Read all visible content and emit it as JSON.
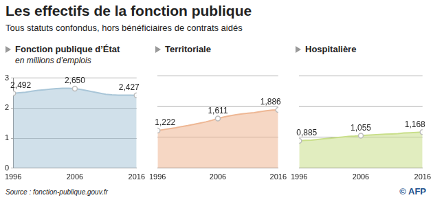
{
  "title": "Les effectifs de la fonction publique",
  "subtitle": "Tous statuts confondus, hors bénéficiaires de contrats aidés",
  "source": "Source : fonction-publique.gouv.fr",
  "credit": "© AFP",
  "chart_data": [
    {
      "type": "area",
      "title": "Fonction publique d’État",
      "ylabel": "en millions d’emplois",
      "categories": [
        "1996",
        null,
        null,
        null,
        null,
        null,
        null,
        null,
        null,
        null,
        "2006",
        null,
        null,
        null,
        null,
        null,
        null,
        null,
        null,
        null,
        "2016"
      ],
      "values": [
        2.492,
        2.51,
        2.53,
        2.56,
        2.59,
        2.61,
        2.63,
        2.65,
        2.66,
        2.66,
        2.65,
        2.62,
        2.58,
        2.54,
        2.5,
        2.46,
        2.44,
        2.43,
        2.43,
        2.43,
        2.427
      ],
      "value_labels": [
        "2,492",
        null,
        null,
        null,
        null,
        null,
        null,
        null,
        null,
        null,
        "2,650",
        null,
        null,
        null,
        null,
        null,
        null,
        null,
        null,
        null,
        "2,427"
      ],
      "data_labels": true,
      "marker": "circle",
      "color": "#a9c6d8",
      "ylim": [
        0,
        3
      ],
      "yticks": [
        0,
        1,
        2,
        3
      ],
      "grid": true
    },
    {
      "type": "area",
      "title": "Territoriale",
      "categories": [
        "1996",
        null,
        null,
        null,
        null,
        null,
        null,
        null,
        null,
        null,
        "2006",
        null,
        null,
        null,
        null,
        null,
        null,
        null,
        null,
        null,
        "2016"
      ],
      "values": [
        1.222,
        1.25,
        1.28,
        1.31,
        1.35,
        1.38,
        1.42,
        1.46,
        1.5,
        1.55,
        1.611,
        1.66,
        1.7,
        1.73,
        1.76,
        1.78,
        1.8,
        1.83,
        1.86,
        1.88,
        1.886
      ],
      "value_labels": [
        "1,222",
        null,
        null,
        null,
        null,
        null,
        null,
        null,
        null,
        null,
        "1,611",
        null,
        null,
        null,
        null,
        null,
        null,
        null,
        null,
        null,
        "1,886"
      ],
      "data_labels": true,
      "marker": "circle",
      "color": "#eeb794",
      "ylim": [
        0,
        3
      ],
      "yticks": [
        0,
        1,
        2,
        3
      ],
      "grid": true,
      "tick_labels": "x"
    },
    {
      "type": "area",
      "title": "Hospitalière",
      "categories": [
        "1996",
        null,
        null,
        null,
        null,
        null,
        null,
        null,
        null,
        null,
        "2006",
        null,
        null,
        null,
        null,
        null,
        null,
        null,
        null,
        null,
        "2016"
      ],
      "values": [
        0.885,
        0.9,
        0.91,
        0.93,
        0.95,
        0.97,
        0.99,
        1.01,
        1.03,
        1.04,
        1.055,
        1.07,
        1.08,
        1.09,
        1.1,
        1.11,
        1.12,
        1.14,
        1.15,
        1.16,
        1.168
      ],
      "value_labels": [
        "0,885",
        null,
        null,
        null,
        null,
        null,
        null,
        null,
        null,
        null,
        "1,055",
        null,
        null,
        null,
        null,
        null,
        null,
        null,
        null,
        null,
        "1,168"
      ],
      "data_labels": true,
      "marker": "circle",
      "color": "#c9df8a",
      "ylim": [
        0,
        3
      ],
      "yticks": [
        0,
        1,
        2,
        3
      ],
      "grid": true,
      "tick_labels": "x"
    }
  ]
}
